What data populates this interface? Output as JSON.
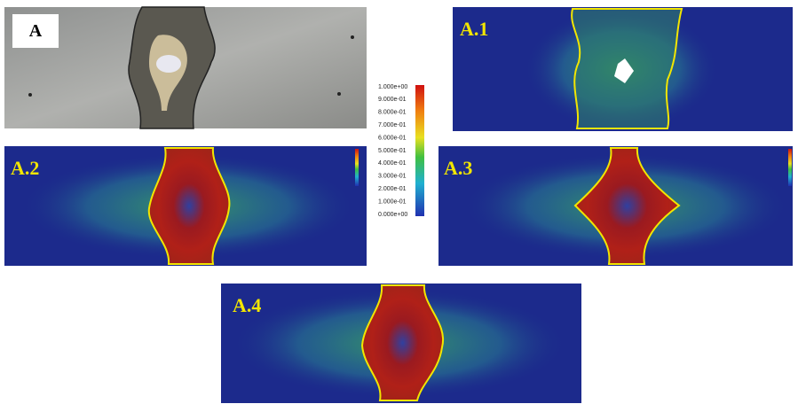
{
  "panels": [
    {
      "label": "A"
    },
    {
      "label": "A.1"
    },
    {
      "label": "A.2"
    },
    {
      "label": "A.3"
    },
    {
      "label": "A.4"
    }
  ],
  "colorbar": {
    "labels": [
      "1.000e+00",
      "9.000e-01",
      "8.000e-01",
      "7.000e-01",
      "6.000e-01",
      "5.000e-01",
      "4.000e-01",
      "3.000e-01",
      "2.000e-01",
      "1.000e-01",
      "0.000e+00"
    ]
  }
}
